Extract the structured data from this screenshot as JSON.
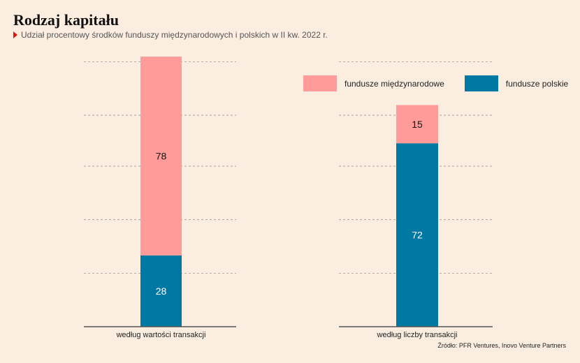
{
  "title": "Rodzaj kapitału",
  "subtitle": "Udział procentowy środków funduszy międzynarodowych i polskich w II kw. 2022 r.",
  "source": "Źródło: PFR Ventures, Inovo Venture Partners",
  "colors": {
    "international": "#ff9c99",
    "polish": "#0078a4",
    "grid": "#999999",
    "axis": "#555555",
    "accent": "#e3120b",
    "background": "#fbeee1"
  },
  "legend": [
    {
      "label": "fundusze międzynarodowe",
      "color": "#ff9c99"
    },
    {
      "label": "fundusze polskie",
      "color": "#0078a4"
    }
  ],
  "chart_data": {
    "type": "bar",
    "stacked": true,
    "title": "Rodzaj kapitału",
    "subtitle": "Udział procentowy środków funduszy międzynarodowych i polskich w II kw. 2022 r.",
    "categories": [
      "według wartości transakcji",
      "według liczby transakcji"
    ],
    "series": [
      {
        "name": "fundusze polskie",
        "values": [
          28,
          72
        ],
        "color": "#0078a4"
      },
      {
        "name": "fundusze międzynarodowe",
        "values": [
          78,
          15
        ],
        "color": "#ff9c99"
      }
    ],
    "ylim": [
      0,
      111
    ],
    "grid": true,
    "legend_position": "top-right"
  }
}
